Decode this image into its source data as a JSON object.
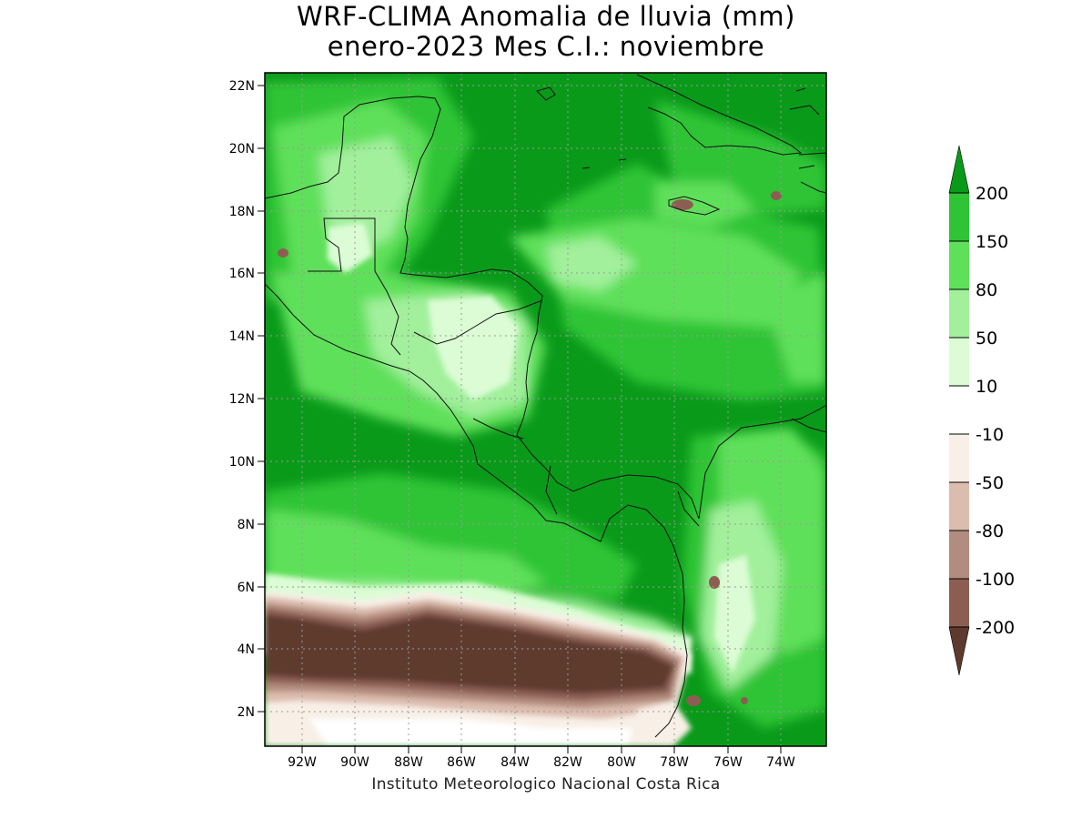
{
  "title": {
    "line1": "WRF-CLIMA Anomalia de lluvia (mm)",
    "line2": "enero-2023 Mes C.I.: noviembre"
  },
  "credit": "Instituto Meteorologico Nacional Costa Rica",
  "axes": {
    "lon_ticks": [
      "92W",
      "90W",
      "88W",
      "86W",
      "84W",
      "82W",
      "80W",
      "78W",
      "76W",
      "74W"
    ],
    "lat_ticks": [
      "22N",
      "20N",
      "18N",
      "16N",
      "14N",
      "12N",
      "10N",
      "8N",
      "6N",
      "4N",
      "2N"
    ]
  },
  "legend": {
    "labels": [
      "200",
      "150",
      "80",
      "50",
      "10",
      "-10",
      "-50",
      "-80",
      "-100",
      "-200"
    ],
    "colors": {
      "over200": "#0a9a1a",
      "150_200": "#2ec436",
      "80_150": "#5ee05a",
      "50_80": "#a2f09c",
      "10_50": "#dcfcd6",
      "m10_10": "#ffffff",
      "m50_m10": "#f8efe6",
      "m80_m50": "#dcbcae",
      "m100_m80": "#b28c7e",
      "m200_m100": "#8c5e52",
      "under_m200": "#5e3a2e"
    }
  }
}
